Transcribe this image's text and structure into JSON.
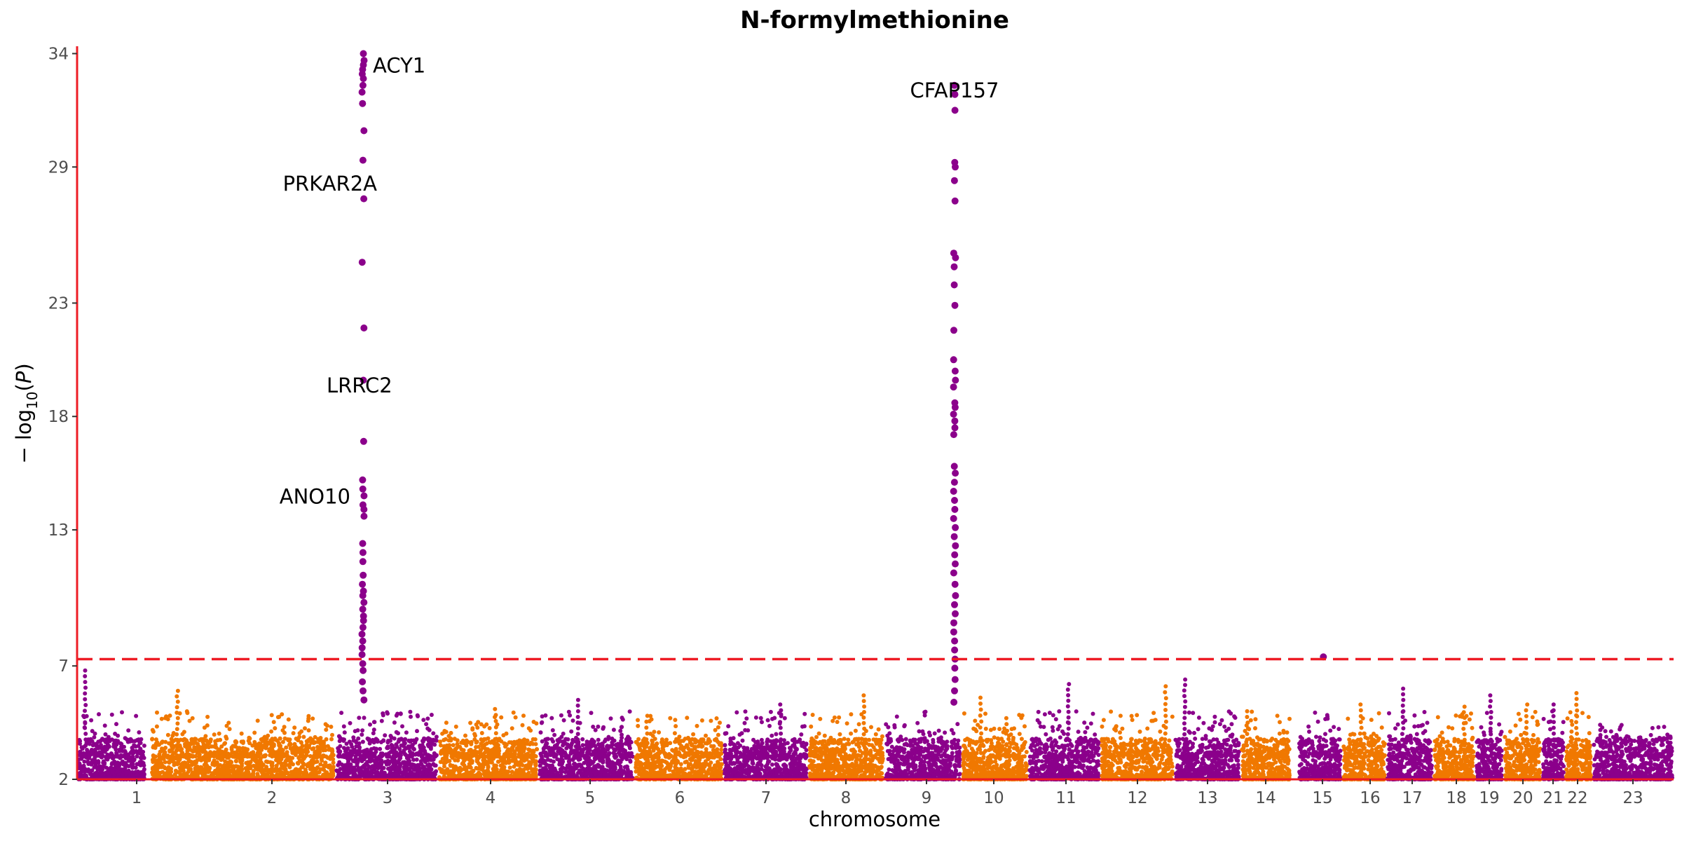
{
  "chart_data": {
    "type": "scatter",
    "subtype": "manhattan",
    "title": "N-formylmethionine",
    "xlabel": "chromosome",
    "ylabel": "−log10(P)",
    "ylim": [
      2,
      34.2
    ],
    "yticks": [
      2,
      7,
      13,
      18,
      23,
      29,
      34
    ],
    "significance_threshold": 7.3,
    "grid": false,
    "colors": {
      "odd_chromosome": "#8B008B",
      "even_chromosome": "#F07800",
      "threshold": "#EE1C25",
      "axis": "#EE1C25"
    },
    "chromosomes": [
      {
        "label": "1",
        "max": 6.8
      },
      {
        "label": "2",
        "max": 5.9
      },
      {
        "label": "3",
        "max": 34.0
      },
      {
        "label": "4",
        "max": 5.1
      },
      {
        "label": "5",
        "max": 5.5
      },
      {
        "label": "6",
        "max": 4.8
      },
      {
        "label": "7",
        "max": 5.3
      },
      {
        "label": "8",
        "max": 5.7
      },
      {
        "label": "9",
        "max": 32.6
      },
      {
        "label": "10",
        "max": 5.6
      },
      {
        "label": "11",
        "max": 6.2
      },
      {
        "label": "12",
        "max": 6.1
      },
      {
        "label": "13",
        "max": 6.4
      },
      {
        "label": "14",
        "max": 5.0
      },
      {
        "label": "15",
        "max": 7.4
      },
      {
        "label": "16",
        "max": 5.3
      },
      {
        "label": "17",
        "max": 6.0
      },
      {
        "label": "18",
        "max": 5.2
      },
      {
        "label": "19",
        "max": 5.7
      },
      {
        "label": "20",
        "max": 5.3
      },
      {
        "label": "21",
        "max": 5.3
      },
      {
        "label": "22",
        "max": 5.8
      },
      {
        "label": "23",
        "max": 4.4
      }
    ],
    "peaks": [
      {
        "chromosome": "3",
        "values": [
          34.0,
          33.7,
          33.5,
          33.3,
          33.1,
          32.9,
          32.6,
          32.3,
          31.8,
          30.6,
          29.3,
          27.6,
          24.8,
          21.9,
          19.6,
          16.9,
          15.2,
          14.8,
          14.5,
          14.1,
          13.9,
          13.6,
          12.4,
          12.0,
          11.6,
          11.0,
          10.6,
          10.3,
          10.1,
          9.8,
          9.5,
          9.2,
          9.0,
          8.7,
          8.4,
          8.1,
          7.8,
          7.5,
          7.1,
          6.8,
          6.3,
          5.9,
          5.5
        ]
      },
      {
        "chromosome": "9",
        "values": [
          32.6,
          32.2,
          31.5,
          29.2,
          29.0,
          28.4,
          27.5,
          25.2,
          25.0,
          24.6,
          23.8,
          22.9,
          21.8,
          20.5,
          20.0,
          19.6,
          19.3,
          18.6,
          18.4,
          18.1,
          17.8,
          17.5,
          17.2,
          15.8,
          15.5,
          15.1,
          14.7,
          14.3,
          13.9,
          13.5,
          13.1,
          12.7,
          12.3,
          11.9,
          11.5,
          11.1,
          10.6,
          10.1,
          9.7,
          9.3,
          8.9,
          8.5,
          8.1,
          7.7,
          7.3,
          6.9,
          6.4,
          5.9,
          5.4
        ]
      },
      {
        "chromosome": "15",
        "values": [
          7.4
        ]
      }
    ],
    "annotations": [
      {
        "text": "ACY1",
        "chromosome": "3",
        "y": 33.5
      },
      {
        "text": "PRKAR2A",
        "chromosome": "3",
        "y": 28.3
      },
      {
        "text": "LRRC2",
        "chromosome": "3",
        "y": 19.4
      },
      {
        "text": "ANO10",
        "chromosome": "3",
        "y": 14.5
      },
      {
        "text": "CFAP157",
        "chromosome": "9",
        "y": 32.4
      }
    ]
  }
}
